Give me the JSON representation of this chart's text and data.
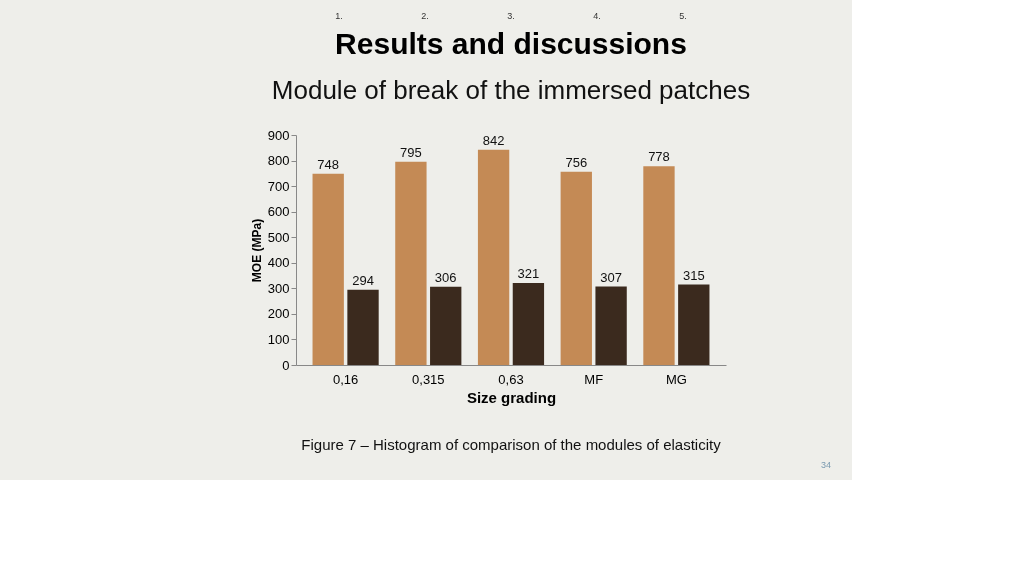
{
  "chart_data": {
    "type": "bar",
    "title": "Results and discussions",
    "subtitle": "Module of break of the immersed patches",
    "xlabel": "Size grading",
    "ylabel": "MOE (MPa)",
    "categories": [
      "0,16",
      "0,315",
      "0,63",
      "MF",
      "MG"
    ],
    "series": [
      {
        "color": "#c48a55",
        "values": [
          748,
          795,
          842,
          756,
          778
        ]
      },
      {
        "color": "#3b2a1e",
        "values": [
          294,
          306,
          321,
          307,
          315
        ]
      }
    ],
    "ylim": [
      0,
      900
    ],
    "yticks": [
      0,
      100,
      200,
      300,
      400,
      500,
      600,
      700,
      800,
      900
    ],
    "grid": false,
    "legend": false,
    "data_labels": true,
    "annotations": [
      "1.",
      "2.",
      "3.",
      "4.",
      "5.",
      "Figure 7 – Histogram of comparison of the modules of elasticity",
      "34"
    ]
  }
}
